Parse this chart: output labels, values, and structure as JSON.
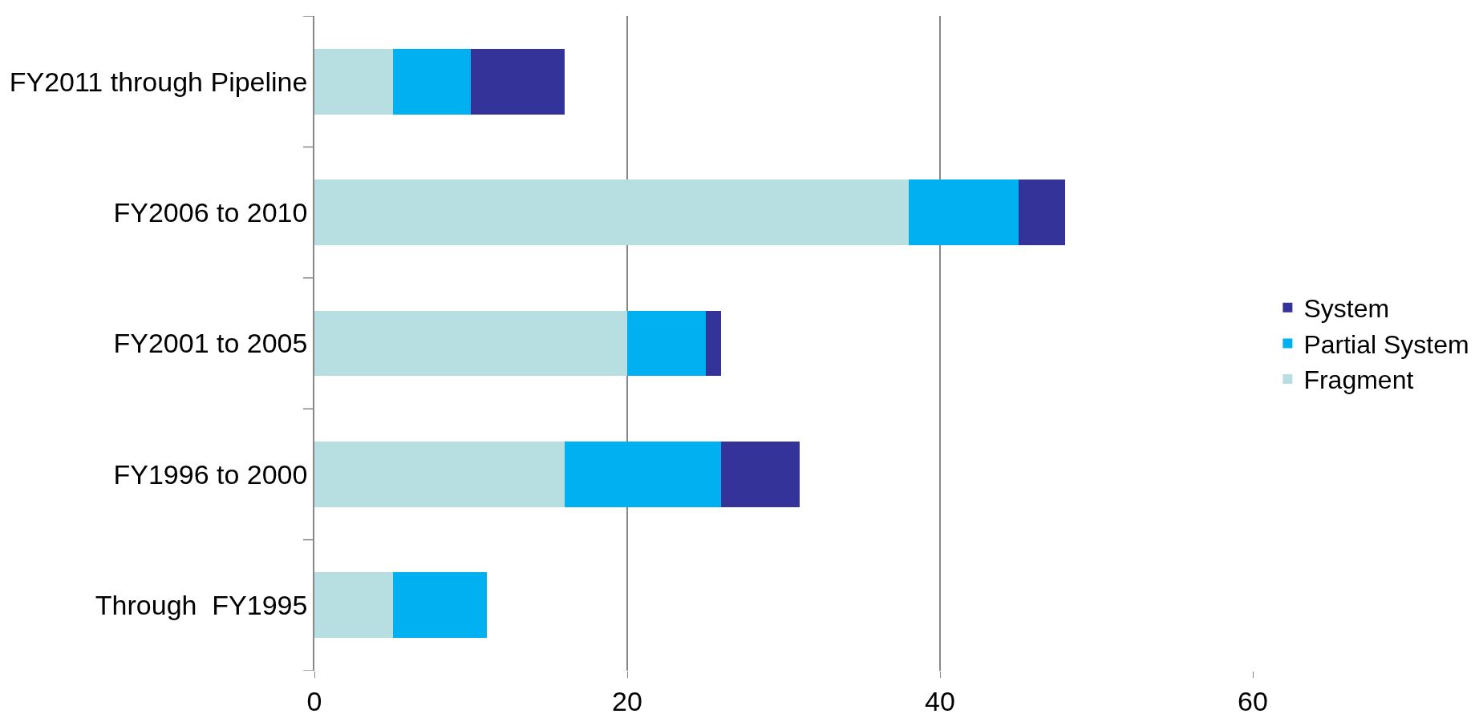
{
  "chart_data": {
    "type": "bar",
    "orientation": "horizontal",
    "stacked": true,
    "categories": [
      "FY2011 through Pipeline",
      "FY2006 to 2010",
      "FY2001 to 2005",
      "FY1996 to 2000",
      "Through  FY1995"
    ],
    "series": [
      {
        "name": "Fragment",
        "color": "#b7dee1",
        "values": [
          5,
          38,
          20,
          16,
          5
        ]
      },
      {
        "name": "Partial System",
        "color": "#00b0f0",
        "values": [
          5,
          7,
          5,
          10,
          6
        ]
      },
      {
        "name": "System",
        "color": "#333399",
        "values": [
          6,
          3,
          1,
          5,
          0
        ]
      }
    ],
    "xlim": [
      0,
      60
    ],
    "xticks": [
      0,
      20,
      40,
      60
    ],
    "grid": "x",
    "legend": "right"
  }
}
